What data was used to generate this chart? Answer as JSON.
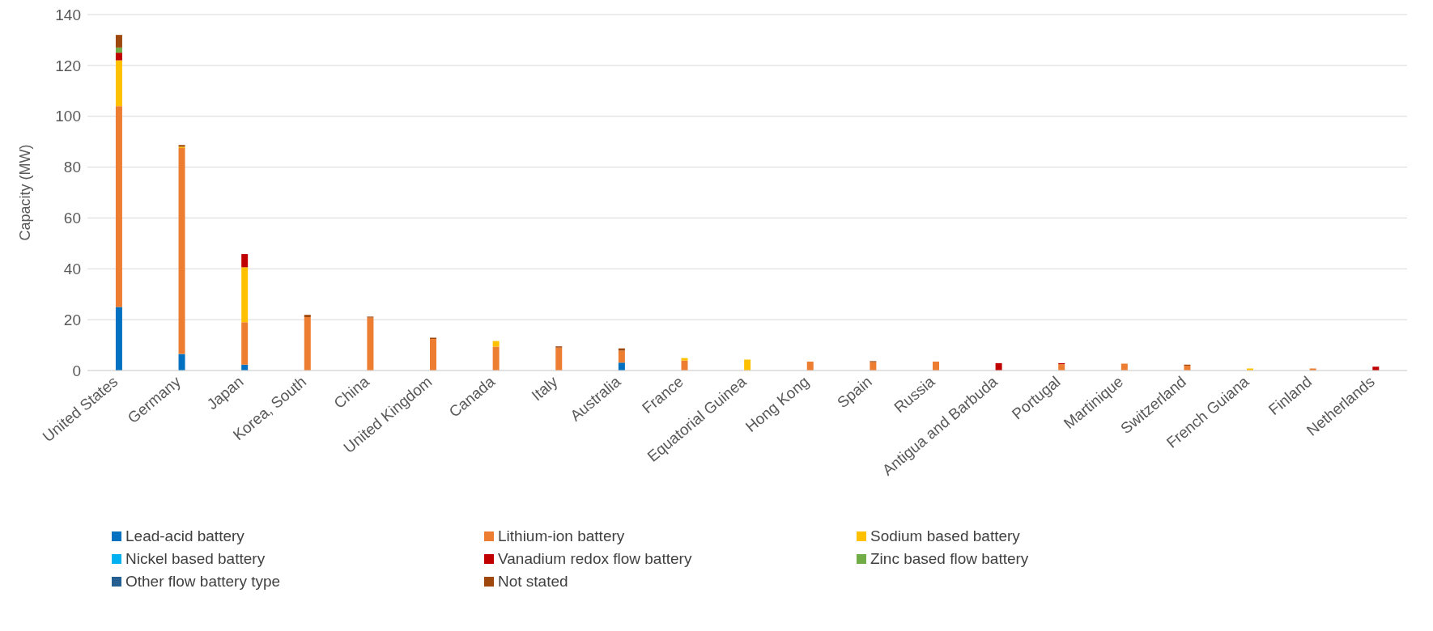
{
  "chart_data": {
    "type": "bar",
    "stacked": true,
    "ylabel": "Capacity (MW)",
    "ylim": [
      0,
      140
    ],
    "yticks": [
      0,
      20,
      40,
      60,
      80,
      100,
      120,
      140
    ],
    "grid": "y",
    "legend": "bottom",
    "categories": [
      "United States",
      "Germany",
      "Japan",
      "Korea, South",
      "China",
      "United Kingdom",
      "Canada",
      "Italy",
      "Australia",
      "France",
      "Equatorial Guinea",
      "Hong Kong",
      "Spain",
      "Russia",
      "Antigua and Barbuda",
      "Portugal",
      "Martinique",
      "Switzerland",
      "French Guiana",
      "Finland",
      "Netherlands"
    ],
    "series": [
      {
        "name": "Lead-acid battery",
        "color": "#0070c0",
        "values": [
          25,
          6.5,
          2.3,
          null,
          null,
          null,
          null,
          null,
          3.1,
          null,
          null,
          null,
          null,
          null,
          null,
          null,
          null,
          null,
          null,
          null,
          null
        ]
      },
      {
        "name": "Lithium-ion battery",
        "color": "#ed7d31",
        "values": [
          79,
          81,
          16.7,
          21,
          20.8,
          12.4,
          9.4,
          9,
          4.7,
          3.9,
          null,
          3.5,
          3.3,
          3.5,
          null,
          2.5,
          2.7,
          1.9,
          null,
          0.8,
          null
        ]
      },
      {
        "name": "Sodium based battery",
        "color": "#ffc000",
        "values": [
          18,
          0.5,
          21.6,
          null,
          null,
          null,
          2.2,
          null,
          null,
          1,
          4.3,
          null,
          null,
          null,
          null,
          null,
          null,
          null,
          0.8,
          null,
          null
        ]
      },
      {
        "name": "Nickel based battery",
        "color": "#00b0f0",
        "values": [
          null,
          null,
          null,
          null,
          null,
          null,
          null,
          null,
          null,
          null,
          null,
          null,
          null,
          null,
          null,
          null,
          null,
          null,
          null,
          null,
          null
        ]
      },
      {
        "name": "Vanadium redox flow battery",
        "color": "#c00000",
        "values": [
          3,
          null,
          5.2,
          null,
          null,
          null,
          null,
          null,
          null,
          null,
          null,
          null,
          null,
          null,
          2.9,
          0.4,
          null,
          null,
          null,
          null,
          1.5
        ]
      },
      {
        "name": "Zinc based flow battery",
        "color": "#70ad47",
        "values": [
          2,
          null,
          null,
          null,
          null,
          null,
          null,
          null,
          null,
          null,
          null,
          null,
          null,
          null,
          null,
          null,
          null,
          null,
          null,
          null,
          null
        ]
      },
      {
        "name": "Other flow battery type",
        "color": "#255e91",
        "values": [
          null,
          null,
          null,
          null,
          null,
          null,
          null,
          null,
          null,
          null,
          null,
          null,
          null,
          null,
          null,
          null,
          null,
          null,
          null,
          null,
          null
        ]
      },
      {
        "name": "Not stated",
        "color": "#9e480e",
        "values": [
          5,
          0.7,
          null,
          0.9,
          0.4,
          0.5,
          null,
          0.5,
          0.9,
          null,
          null,
          null,
          0.4,
          null,
          null,
          null,
          null,
          0.4,
          null,
          null,
          null
        ]
      }
    ]
  }
}
